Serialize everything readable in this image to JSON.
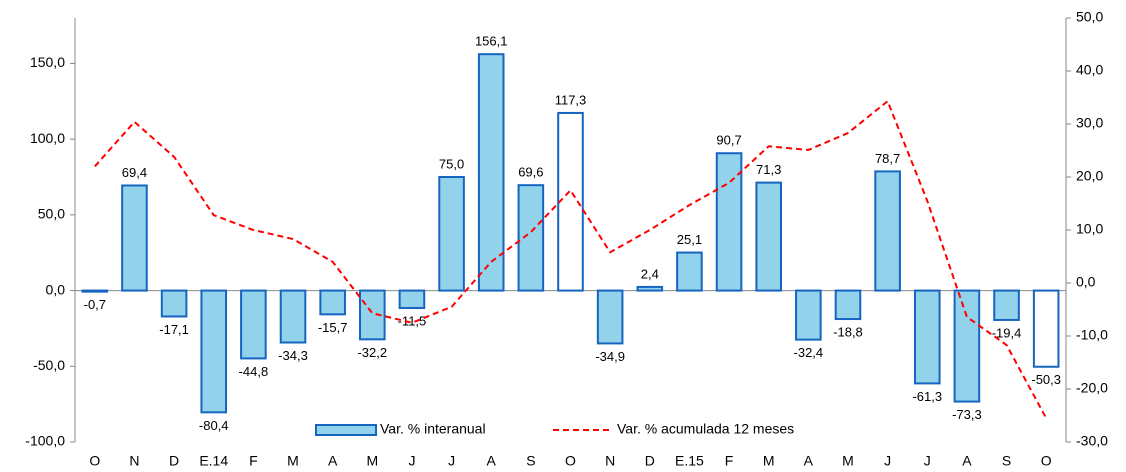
{
  "chart_data": {
    "type": "bar_line",
    "categories": [
      "O",
      "N",
      "D",
      "E.14",
      "F",
      "M",
      "A",
      "M",
      "J",
      "J",
      "A",
      "S",
      "O",
      "N",
      "D",
      "E.15",
      "F",
      "M",
      "A",
      "M",
      "J",
      "J",
      "A",
      "S",
      "O"
    ],
    "series": [
      {
        "name": "Var. % interanual",
        "type": "bar",
        "color": "#92d3eb",
        "edge_color": "#1565c0",
        "colors": [
          "#92d3eb",
          "#92d3eb",
          "#92d3eb",
          "#92d3eb",
          "#92d3eb",
          "#92d3eb",
          "#92d3eb",
          "#92d3eb",
          "#92d3eb",
          "#92d3eb",
          "#92d3eb",
          "#92d3eb",
          "#ffffff",
          "#92d3eb",
          "#92d3eb",
          "#92d3eb",
          "#92d3eb",
          "#92d3eb",
          "#92d3eb",
          "#92d3eb",
          "#92d3eb",
          "#92d3eb",
          "#92d3eb",
          "#92d3eb",
          "#ffffff"
        ],
        "values": [
          -0.7,
          69.4,
          -17.1,
          -80.4,
          -44.8,
          -34.3,
          -15.7,
          -32.2,
          -11.5,
          75.0,
          156.1,
          69.6,
          117.3,
          -34.9,
          2.4,
          25.1,
          90.7,
          71.3,
          -32.4,
          -18.8,
          78.7,
          -61.3,
          -73.3,
          -19.4,
          -50.3
        ],
        "value_labels": [
          "-0,7",
          "69,4",
          "-17,1",
          "-80,4",
          "-44,8",
          "-34,3",
          "-15,7",
          "-32,2",
          "-11,5",
          "75,0",
          "156,1",
          "69,6",
          "117,3",
          "-34,9",
          "2,4",
          "25,1",
          "90,7",
          "71,3",
          "-32,4",
          "-18,8",
          "78,7",
          "-61,3",
          "-73,3",
          "-19,4",
          "-50,3"
        ]
      },
      {
        "name": "Var. % acumulada 12 meses",
        "type": "line",
        "axis": "y2",
        "color": "#ff0000",
        "dashed": true,
        "values": [
          22,
          30.4,
          23.8,
          12.8,
          10,
          8.3,
          4,
          -5.7,
          -7.5,
          -4.5,
          4,
          9.6,
          17.5,
          5.8,
          10,
          14.7,
          18.9,
          25.8,
          25.1,
          28.3,
          34.3,
          15.5,
          -6.4,
          -11.7,
          -25.5
        ]
      }
    ],
    "ylim": [
      -100,
      180
    ],
    "yticks": [
      {
        "value": -100,
        "label": "-100,0"
      },
      {
        "value": -50,
        "label": "-50,0"
      },
      {
        "value": 0,
        "label": "0,0"
      },
      {
        "value": 50,
        "label": "50,0"
      },
      {
        "value": 100,
        "label": "100,0"
      },
      {
        "value": 150,
        "label": "150,0"
      }
    ],
    "y2lim": [
      -30,
      50
    ],
    "y2ticks": [
      {
        "value": -30,
        "label": "-30,0"
      },
      {
        "value": -20,
        "label": "-20,0"
      },
      {
        "value": -10,
        "label": "-10,0"
      },
      {
        "value": 0,
        "label": "0,0"
      },
      {
        "value": 10,
        "label": "10,0"
      },
      {
        "value": 20,
        "label": "20,0"
      },
      {
        "value": 30,
        "label": "30,0"
      },
      {
        "value": 40,
        "label": "40,0"
      },
      {
        "value": 50,
        "label": "50,0"
      }
    ],
    "grid": false,
    "legend": "bottom"
  }
}
